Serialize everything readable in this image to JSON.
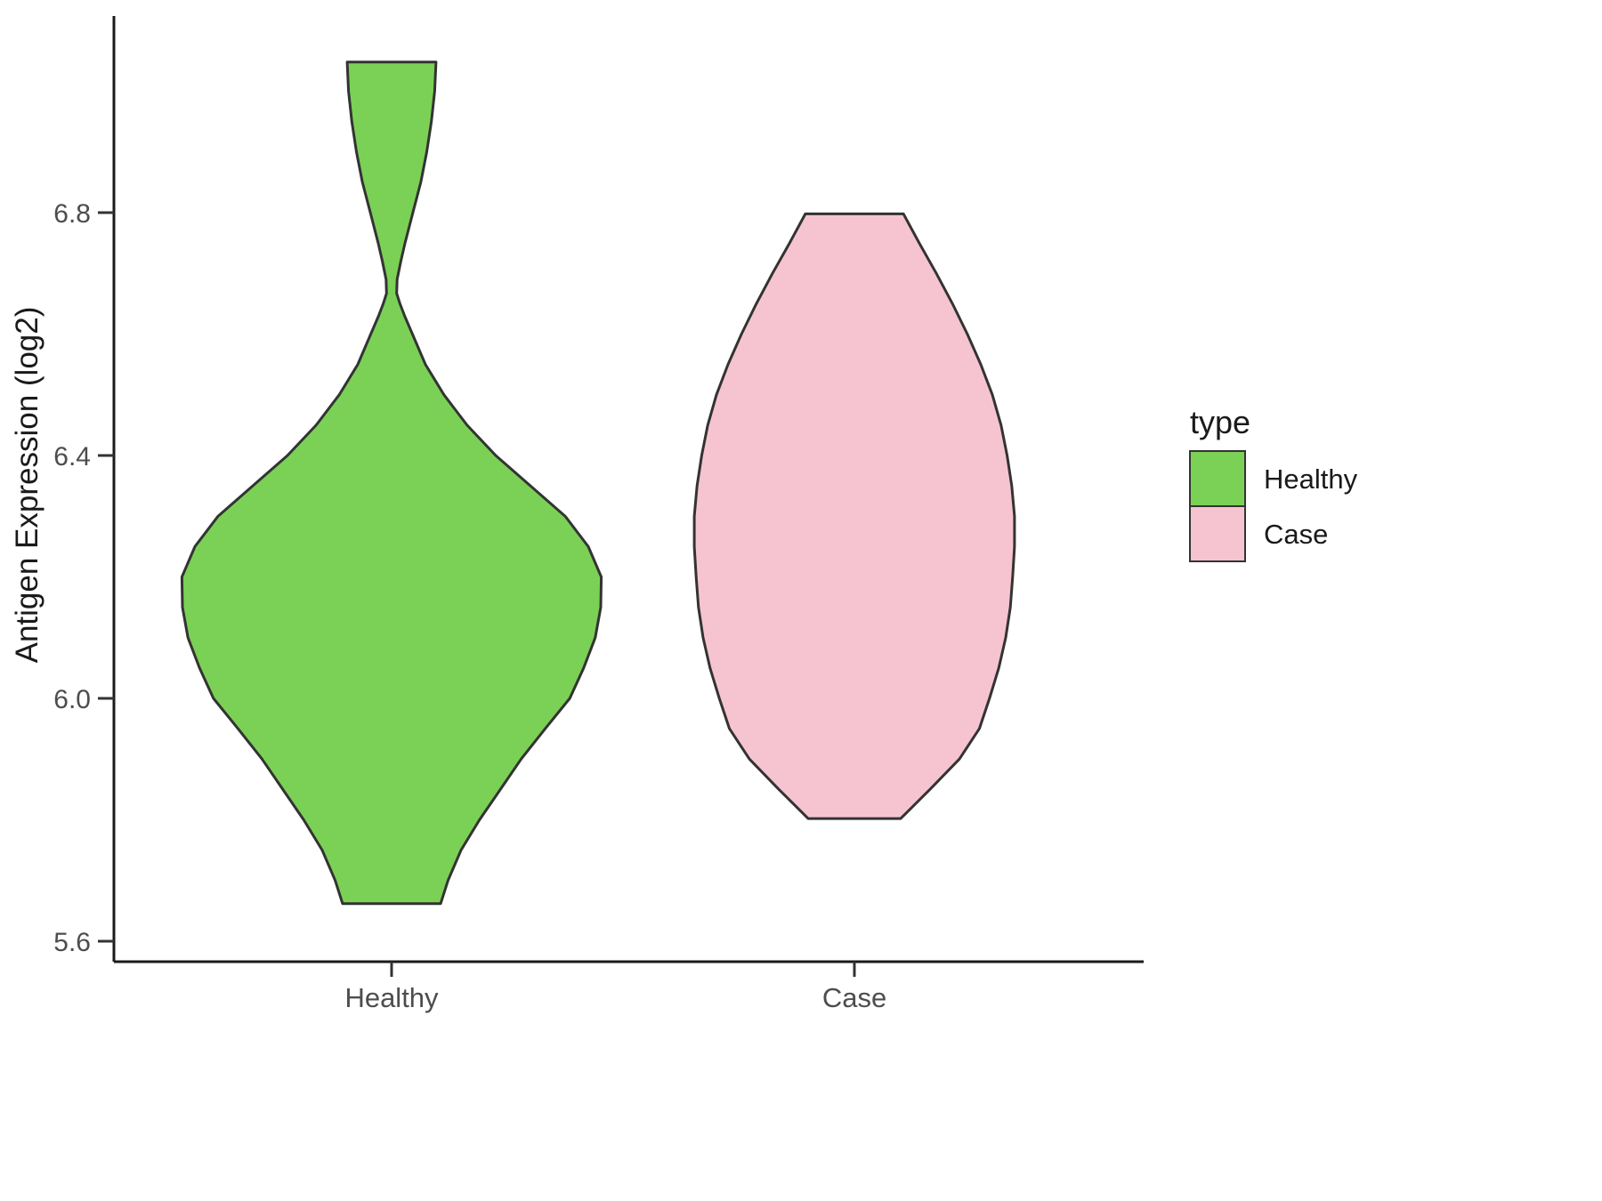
{
  "page": {
    "background": "#ffffff"
  },
  "chart_data": {
    "type": "violin",
    "title": "",
    "xlabel": "",
    "ylabel": "Antigen Expression (log2)",
    "categories": [
      "Healthy",
      "Case"
    ],
    "ylim": [
      5.55,
      7.1
    ],
    "yticks": [
      5.6,
      6.0,
      6.4,
      6.8
    ],
    "ytick_labels": [
      "5.6",
      "6.0",
      "6.4",
      "6.8"
    ],
    "grid": false,
    "stroke": "#333333",
    "axis_color": "#1a1a1a",
    "legend": {
      "title": "type",
      "position": "right",
      "items": [
        {
          "label": "Healthy",
          "color": "#7BD156"
        },
        {
          "label": "Case",
          "color": "#F6C4D0"
        }
      ]
    },
    "series": [
      {
        "name": "Healthy",
        "fill": "#7BD156",
        "value_range": [
          5.66,
          7.05
        ],
        "profile": [
          [
            5.662,
            0.106
          ],
          [
            5.7,
            0.122
          ],
          [
            5.75,
            0.15
          ],
          [
            5.8,
            0.19
          ],
          [
            5.85,
            0.235
          ],
          [
            5.9,
            0.28
          ],
          [
            5.95,
            0.332
          ],
          [
            6.0,
            0.385
          ],
          [
            6.05,
            0.415
          ],
          [
            6.1,
            0.44
          ],
          [
            6.15,
            0.452
          ],
          [
            6.2,
            0.453
          ],
          [
            6.25,
            0.425
          ],
          [
            6.3,
            0.375
          ],
          [
            6.35,
            0.3
          ],
          [
            6.4,
            0.225
          ],
          [
            6.45,
            0.163
          ],
          [
            6.5,
            0.113
          ],
          [
            6.55,
            0.073
          ],
          [
            6.6,
            0.045
          ],
          [
            6.63,
            0.028
          ],
          [
            6.65,
            0.018
          ],
          [
            6.667,
            0.011
          ],
          [
            6.69,
            0.012
          ],
          [
            6.72,
            0.02
          ],
          [
            6.75,
            0.029
          ],
          [
            6.8,
            0.046
          ],
          [
            6.85,
            0.063
          ],
          [
            6.9,
            0.076
          ],
          [
            6.95,
            0.086
          ],
          [
            7.0,
            0.093
          ],
          [
            7.048,
            0.096
          ]
        ]
      },
      {
        "name": "Case",
        "fill": "#F6C4D0",
        "value_range": [
          5.8,
          6.8
        ],
        "profile": [
          [
            5.802,
            0.1
          ],
          [
            5.85,
            0.163
          ],
          [
            5.9,
            0.227
          ],
          [
            5.95,
            0.27
          ],
          [
            6.0,
            0.292
          ],
          [
            6.05,
            0.312
          ],
          [
            6.1,
            0.327
          ],
          [
            6.15,
            0.337
          ],
          [
            6.2,
            0.342
          ],
          [
            6.25,
            0.346
          ],
          [
            6.3,
            0.346
          ],
          [
            6.35,
            0.34
          ],
          [
            6.4,
            0.33
          ],
          [
            6.45,
            0.317
          ],
          [
            6.5,
            0.298
          ],
          [
            6.55,
            0.273
          ],
          [
            6.6,
            0.244
          ],
          [
            6.65,
            0.212
          ],
          [
            6.7,
            0.177
          ],
          [
            6.75,
            0.14
          ],
          [
            6.798,
            0.106
          ]
        ]
      }
    ]
  }
}
